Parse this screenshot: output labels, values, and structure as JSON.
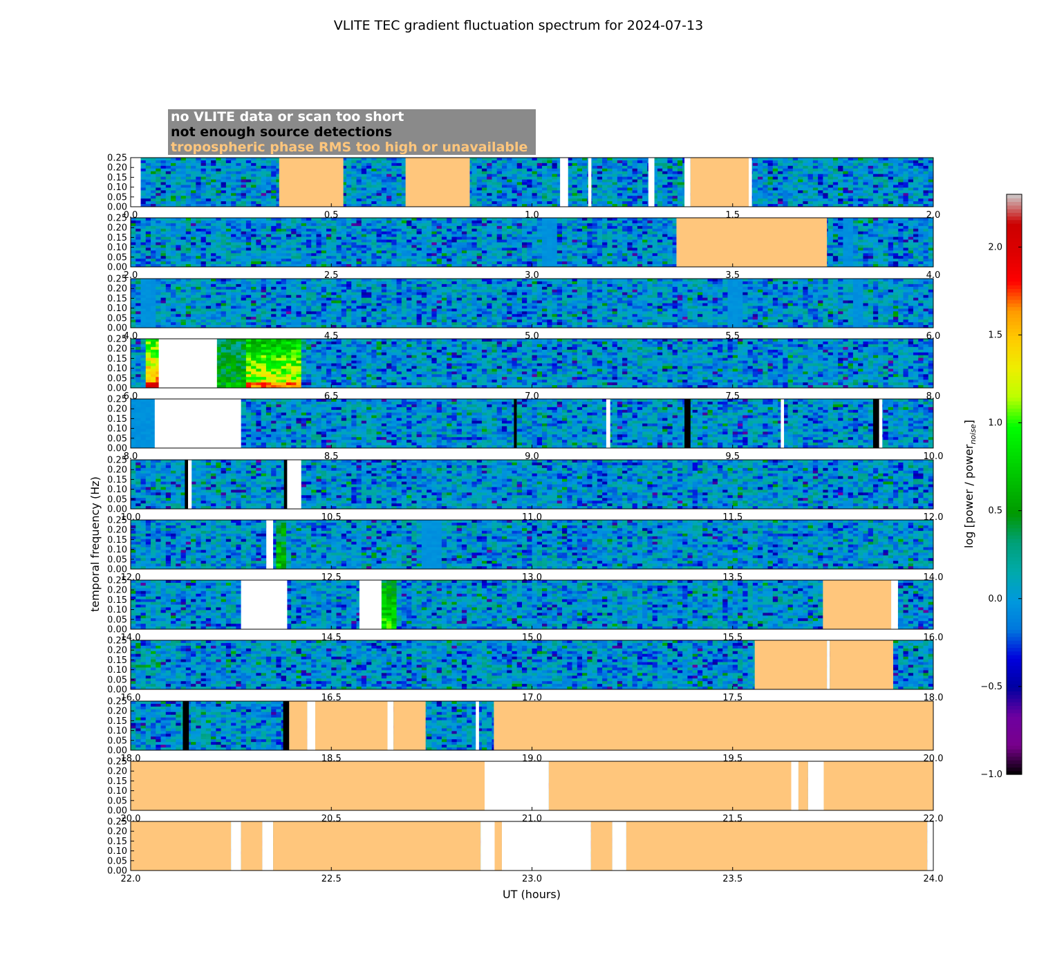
{
  "chart_data": {
    "type": "heatmap",
    "title": "VLITE TEC gradient fluctuation spectrum for 2024-07-13",
    "xlabel": "UT (hours)",
    "ylabel": "temporal frequency (Hz)",
    "ylim": [
      0,
      0.25
    ],
    "yticks": [
      "0.00",
      "0.05",
      "0.10",
      "0.15",
      "0.20",
      "0.25"
    ],
    "colorbar": {
      "label": "log [power / power",
      "label_subscript": "noise",
      "label_close": "]",
      "range": [
        -1.0,
        2.3
      ],
      "ticks": [
        "−1.0",
        "−0.5",
        "0.0",
        "0.5",
        "1.0",
        "1.5",
        "2.0"
      ],
      "tick_values": [
        -1.0,
        -0.5,
        0.0,
        0.5,
        1.0,
        1.5,
        2.0
      ],
      "colormap": "nipy_spectral"
    },
    "legend": [
      {
        "text": "no VLITE data or scan too short",
        "color": "#ffffff"
      },
      {
        "text": "not enough source detections",
        "color": "#000000"
      },
      {
        "text": "tropospheric phase RMS too high or unavailable",
        "color": "#ffc67c"
      }
    ],
    "flag_colors": {
      "white": "#ffffff",
      "black": "#000000",
      "orange": "#ffc67c"
    },
    "panels": [
      {
        "range": [
          0,
          2
        ],
        "xticks": [
          "0.0",
          "0.5",
          "1.0",
          "1.5",
          "2.0"
        ],
        "segments": [
          [
            0.0,
            0.025,
            "white"
          ],
          [
            0.37,
            0.53,
            "orange"
          ],
          [
            0.685,
            0.845,
            "orange"
          ],
          [
            1.07,
            1.09,
            "white"
          ],
          [
            1.14,
            1.148,
            "white"
          ],
          [
            1.29,
            1.305,
            "white"
          ],
          [
            1.38,
            1.395,
            "white"
          ],
          [
            1.395,
            1.54,
            "orange"
          ],
          [
            1.54,
            1.548,
            "white"
          ]
        ],
        "quiet": [],
        "hot": []
      },
      {
        "range": [
          2,
          4
        ],
        "xticks": [
          "2.0",
          "2.5",
          "3.0",
          "3.5",
          "4.0"
        ],
        "segments": [
          [
            3.36,
            3.735,
            "orange"
          ]
        ],
        "quiet": [
          [
            3.02,
            3.06
          ],
          [
            3.77,
            3.8
          ]
        ],
        "hot": []
      },
      {
        "range": [
          4,
          6
        ],
        "xticks": [
          "4.0",
          "4.5",
          "5.0",
          "5.5",
          "6.0"
        ],
        "segments": [],
        "quiet": [
          [
            4.02,
            4.06
          ],
          [
            5.49,
            5.53
          ],
          [
            5.8,
            5.83
          ]
        ],
        "hot": []
      },
      {
        "range": [
          6,
          8
        ],
        "xticks": [
          "6.0",
          "6.5",
          "7.0",
          "7.5",
          "8.0"
        ],
        "segments": [
          [
            6.07,
            6.215,
            "white"
          ]
        ],
        "quiet": [],
        "hot": [
          [
            6.035,
            6.07,
            1.7
          ],
          [
            6.215,
            6.285,
            0.6
          ],
          [
            6.285,
            6.425,
            1.3
          ]
        ]
      },
      {
        "range": [
          8,
          10
        ],
        "xticks": [
          "8.0",
          "8.5",
          "9.0",
          "9.5",
          "10.0"
        ],
        "segments": [
          [
            8.06,
            8.275,
            "white"
          ],
          [
            8.955,
            8.962,
            "black"
          ],
          [
            9.185,
            9.195,
            "white"
          ],
          [
            9.38,
            9.395,
            "black"
          ],
          [
            9.62,
            9.628,
            "white"
          ],
          [
            9.85,
            9.865,
            "black"
          ],
          [
            9.865,
            9.873,
            "white"
          ]
        ],
        "quiet": [
          [
            8.0,
            8.06
          ]
        ],
        "hot": []
      },
      {
        "range": [
          10,
          12
        ],
        "xticks": [
          "10.0",
          "10.5",
          "11.0",
          "11.5",
          "12.0"
        ],
        "segments": [
          [
            10.135,
            10.143,
            "black"
          ],
          [
            10.143,
            10.152,
            "white"
          ],
          [
            10.382,
            10.39,
            "black"
          ],
          [
            10.39,
            10.425,
            "white"
          ]
        ],
        "quiet": [],
        "hot": []
      },
      {
        "range": [
          12,
          14
        ],
        "xticks": [
          "12.0",
          "12.5",
          "13.0",
          "13.5",
          "14.0"
        ],
        "segments": [
          [
            12.338,
            12.355,
            "white"
          ]
        ],
        "quiet": [
          [
            12.72,
            12.77
          ]
        ],
        "hot": [
          [
            12.36,
            12.39,
            0.7
          ]
        ]
      },
      {
        "range": [
          14,
          16
        ],
        "xticks": [
          "14.0",
          "14.5",
          "15.0",
          "15.5",
          "16.0"
        ],
        "segments": [
          [
            14.275,
            14.39,
            "white"
          ],
          [
            14.57,
            14.625,
            "white"
          ],
          [
            15.725,
            15.895,
            "orange"
          ],
          [
            15.895,
            15.912,
            "white"
          ]
        ],
        "quiet": [],
        "hot": [
          [
            14.625,
            14.665,
            0.9
          ]
        ]
      },
      {
        "range": [
          16,
          18
        ],
        "xticks": [
          "16.0",
          "16.5",
          "17.0",
          "17.5",
          "18.0"
        ],
        "segments": [
          [
            17.555,
            17.735,
            "orange"
          ],
          [
            17.735,
            17.742,
            "white"
          ],
          [
            17.742,
            17.9,
            "orange"
          ]
        ],
        "quiet": [],
        "hot": []
      },
      {
        "range": [
          18,
          20
        ],
        "xticks": [
          "18.0",
          "18.5",
          "19.0",
          "19.5",
          "20.0"
        ],
        "segments": [
          [
            18.13,
            18.145,
            "black"
          ],
          [
            18.38,
            18.395,
            "black"
          ],
          [
            18.395,
            18.44,
            "orange"
          ],
          [
            18.44,
            18.46,
            "white"
          ],
          [
            18.46,
            18.64,
            "orange"
          ],
          [
            18.64,
            18.655,
            "white"
          ],
          [
            18.655,
            18.735,
            "orange"
          ],
          [
            18.86,
            18.868,
            "white"
          ],
          [
            18.905,
            20.0,
            "orange"
          ]
        ],
        "quiet": [],
        "hot": []
      },
      {
        "range": [
          20,
          22
        ],
        "xticks": [
          "20.0",
          "20.5",
          "21.0",
          "21.5",
          "22.0"
        ],
        "segments": [
          [
            20.0,
            20.882,
            "orange"
          ],
          [
            20.882,
            21.042,
            "white"
          ],
          [
            21.042,
            21.646,
            "orange"
          ],
          [
            21.646,
            21.664,
            "white"
          ],
          [
            21.664,
            21.688,
            "orange"
          ],
          [
            21.688,
            21.727,
            "white"
          ],
          [
            21.727,
            22.0,
            "orange"
          ]
        ],
        "quiet": [],
        "hot": []
      },
      {
        "range": [
          22,
          24
        ],
        "xticks": [
          "22.0",
          "22.5",
          "23.0",
          "23.5",
          "24.0"
        ],
        "segments": [
          [
            22.0,
            22.25,
            "orange"
          ],
          [
            22.25,
            22.275,
            "white"
          ],
          [
            22.275,
            22.328,
            "orange"
          ],
          [
            22.328,
            22.355,
            "white"
          ],
          [
            22.355,
            22.872,
            "orange"
          ],
          [
            22.872,
            22.907,
            "white"
          ],
          [
            22.907,
            22.925,
            "orange"
          ],
          [
            22.925,
            23.147,
            "white"
          ],
          [
            23.147,
            23.2,
            "orange"
          ],
          [
            23.2,
            23.235,
            "white"
          ],
          [
            23.235,
            23.985,
            "orange"
          ],
          [
            23.985,
            24.0,
            "white"
          ]
        ],
        "quiet": [],
        "hot": []
      }
    ]
  }
}
